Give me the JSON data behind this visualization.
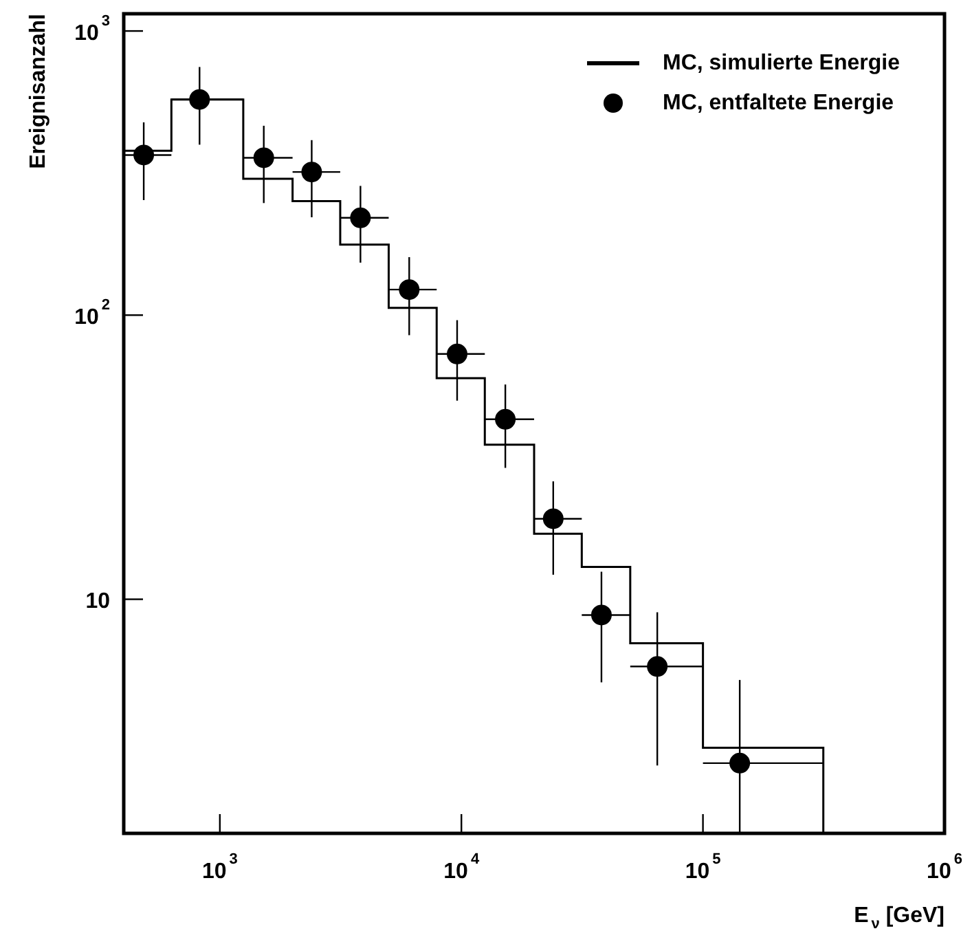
{
  "chart_data": {
    "type": "histogram",
    "xlabel": "E$_{ν}$ [GeV]",
    "ylabel": "Ereignisanzahl",
    "log": "xy",
    "legend": "top right",
    "marker": "circle",
    "xlim": [
      400,
      1000000
    ],
    "ylim": [
      1.5,
      1150
    ],
    "xticks": [
      {
        "value": 1000,
        "label": "10$^{3}$"
      },
      {
        "value": 10000,
        "label": "10$^{4}$"
      },
      {
        "value": 100000,
        "label": "10$^{5}$"
      },
      {
        "value": 1000000,
        "label": "10$^{6}$"
      }
    ],
    "yticks": [
      {
        "value": 10,
        "label": "10"
      },
      {
        "value": 100,
        "label": "10$^{2}$"
      },
      {
        "value": 1000,
        "label": "10$^{3}$"
      }
    ],
    "series": [
      {
        "name": "MC, simulierte Energie",
        "color": "#000000",
        "bins": [
          400,
          630,
          1250,
          2000,
          3150,
          5000,
          7900,
          12500,
          20000,
          31500,
          50000,
          100000,
          315000
        ],
        "values": [
          379,
          574,
          302,
          252,
          177,
          106,
          60,
          35,
          17,
          13,
          7,
          3
        ]
      },
      {
        "name": "MC, entfaltete Energie",
        "type": "scatter",
        "color": "#000000",
        "x": [
          484,
          824,
          1520,
          2400,
          3820,
          6080,
          9600,
          15200,
          24000,
          38000,
          64700,
          142000
        ],
        "values": [
          366,
          574,
          358,
          319,
          220,
          123,
          73,
          43,
          19.2,
          8.8,
          5.8,
          2.65
        ],
        "errors": [
          [
            254,
            477
          ],
          [
            398,
            747
          ],
          [
            248,
            464
          ],
          [
            221,
            413
          ],
          [
            153,
            285
          ],
          [
            85,
            160
          ],
          [
            50,
            96
          ],
          [
            29,
            57
          ],
          [
            12.2,
            26
          ],
          [
            5.1,
            12.5
          ],
          [
            2.6,
            9
          ],
          [
            1.5,
            5.2
          ]
        ],
        "xerrors": [
          [
            400,
            630
          ],
          [
            630,
            1250
          ],
          [
            1250,
            2000
          ],
          [
            2000,
            3150
          ],
          [
            3150,
            5000
          ],
          [
            5000,
            7900
          ],
          [
            7900,
            12500
          ],
          [
            12500,
            20000
          ],
          [
            20000,
            31500
          ],
          [
            31500,
            50000
          ],
          [
            50000,
            100000
          ],
          [
            100000,
            315000
          ]
        ]
      }
    ]
  }
}
